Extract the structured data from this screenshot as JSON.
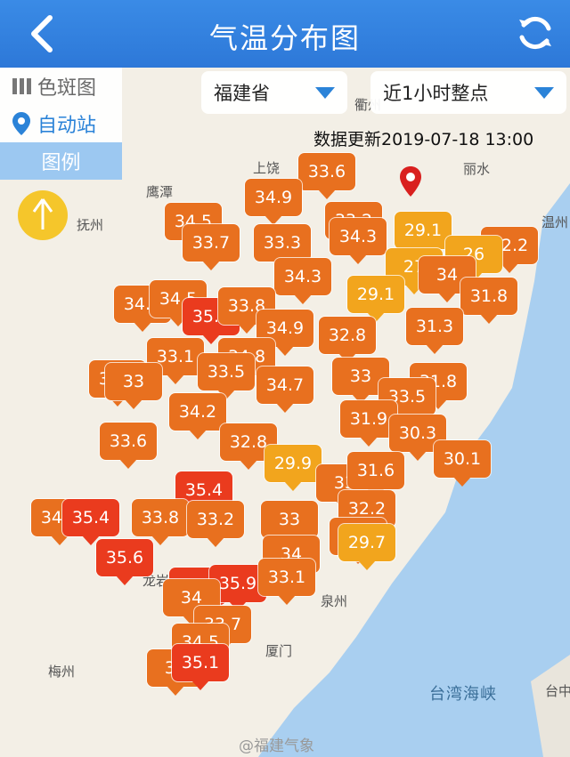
{
  "header": {
    "title": "气温分布图"
  },
  "tools": {
    "spot": "色斑图",
    "auto": "自动站",
    "legend": "图例"
  },
  "selectors": {
    "province": "福建省",
    "time": "近1小时整点"
  },
  "update": "数据更新2019-07-18 13:00",
  "watermark": "@福建气象",
  "strait": "台湾海峡",
  "colors": {
    "hot": "#ea3b1e",
    "warm": "#e8701f",
    "mild": "#f2a51d",
    "header": "#2d78d8"
  },
  "cities": [
    "衢州",
    "上饶",
    "丽水",
    "鹰潭",
    "抚州",
    "温州",
    "泉州",
    "厦门",
    "梅州",
    "台中",
    "龙岩"
  ],
  "markers": [
    "33.6",
    "34.9",
    "34.5",
    "33.7",
    "33.3",
    "33.2",
    "34.3",
    "29.1",
    "32.2",
    "27",
    "26",
    "34",
    "34.3",
    "31.8",
    "34.2",
    "34.5",
    "35.3",
    "33.8",
    "29.1",
    "34.9",
    "32.8",
    "31.3",
    "33.1",
    "34.8",
    "33.5",
    "33.9",
    "33",
    "33",
    "34.7",
    "31.8",
    "33.5",
    "34.2",
    "33.6",
    "31.9",
    "30.3",
    "30.1",
    "32.8",
    "29.9",
    "35.4",
    "33",
    "31.6",
    "34.7",
    "35.4",
    "33.8",
    "33.2",
    "33",
    "32.2",
    "35.6",
    "34",
    "33",
    "29.7",
    "35",
    "35.9",
    "33.1",
    "34",
    "33.7",
    "34.5",
    "33",
    "35.1"
  ]
}
